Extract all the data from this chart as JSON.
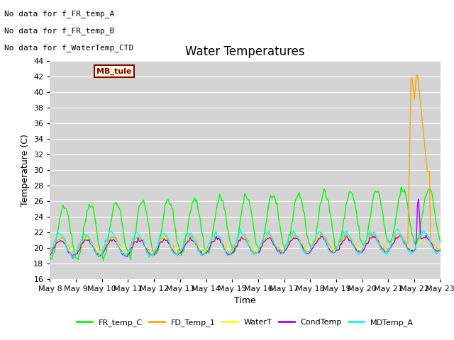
{
  "title": "Water Temperatures",
  "xlabel": "Time",
  "ylabel": "Temperature (C)",
  "ylim": [
    16,
    44
  ],
  "yticks": [
    16,
    18,
    20,
    22,
    24,
    26,
    28,
    30,
    32,
    34,
    36,
    38,
    40,
    42,
    44
  ],
  "colors": {
    "FR_temp_C": "#00ff00",
    "FD_Temp_1": "#ffa500",
    "WaterT": "#ffff00",
    "CondTemp": "#aa00ff",
    "MDTemp_A": "#00ffff"
  },
  "annotations": [
    "No data for f_FR_temp_A",
    "No data for f_FR_temp_B",
    "No data for f_WaterTemp_CTD"
  ],
  "mb_tule_label": "MB_tule",
  "plot_bg_color": "#d4d4d4",
  "title_fontsize": 12,
  "axis_fontsize": 9,
  "legend_fontsize": 8,
  "annot_fontsize": 8
}
